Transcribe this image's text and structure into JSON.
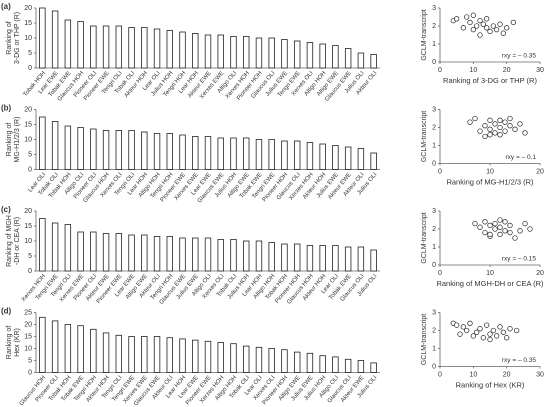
{
  "chart_data": [
    {
      "type": "bar",
      "panel_label": "(a)",
      "ylabel": [
        "Ranking of",
        "3-DG or THP (R)"
      ],
      "ylim": [
        0,
        20
      ],
      "yticks": [
        0,
        5,
        10,
        15,
        20
      ],
      "categories": [
        "Tobak HOH",
        "Lear EWE",
        "Tobak EWE",
        "Glaucus HOH",
        "Pioneer OLI",
        "Pioneer EWE",
        "Tengri OLI",
        "Tobak OLI",
        "Akteur HOH",
        "Lear OLI",
        "Julius HOH",
        "Tengri HOH",
        "Lear HOH",
        "Akteur EWE",
        "Xerxes EWE",
        "Altigo OLI",
        "Xerxes HOH",
        "Pioneer HOH",
        "Glaucus OLI",
        "Julius EWE",
        "Tengri EWE",
        "Xerxes OLI",
        "Altigo HOH",
        "Altigo EWE",
        "Glaucus EWE",
        "Julius OLI",
        "Akteur OLI"
      ],
      "values": [
        20,
        19,
        16,
        15.5,
        14,
        14,
        14,
        13.5,
        13.5,
        13,
        12.5,
        12,
        11.5,
        11,
        11,
        10.5,
        10.5,
        10,
        10,
        9.5,
        9,
        8.5,
        8,
        7.5,
        6.5,
        5,
        4.5
      ],
      "color": "#ffffff"
    },
    {
      "type": "scatter",
      "xlabel": "Ranking of 3-DG or THP (R)",
      "ylabel": "GCLM-transcript",
      "annotation": "rxy = – 0.35",
      "xlim": [
        0,
        30
      ],
      "xticks": [
        0,
        10,
        20,
        30
      ],
      "ylim": [
        0,
        3
      ],
      "yticks": [
        0,
        1,
        2,
        3
      ],
      "x": [
        4,
        5,
        7,
        8,
        9,
        10,
        10,
        11,
        12,
        12,
        13,
        14,
        14,
        15,
        16,
        17,
        18,
        19,
        20,
        22
      ],
      "y": [
        2.3,
        2.4,
        1.9,
        2.5,
        2.2,
        1.8,
        2.6,
        2.0,
        2.3,
        1.5,
        2.1,
        1.9,
        2.4,
        1.7,
        2.0,
        1.8,
        2.1,
        1.6,
        1.9,
        2.2
      ],
      "color": "#ffffff"
    },
    {
      "type": "bar",
      "panel_label": "(b)",
      "ylabel": [
        "Ranking of",
        "MG-H1/2/3 (R)"
      ],
      "ylim": [
        0,
        20
      ],
      "yticks": [
        0,
        5,
        10,
        15,
        20
      ],
      "categories": [
        "Lear OLI",
        "Tobak OLI",
        "Tobak HOH",
        "Altigo OLI",
        "Pioneer OLI",
        "Glaucus HOH",
        "Xerxes OLI",
        "Tengri OLI",
        "Lear HOH",
        "Altigo HOH",
        "Tengri HOH",
        "Pioneer EWE",
        "Xerxes EWE",
        "Lear EWE",
        "Glaucus EWE",
        "Julius HOH",
        "Altigo EWE",
        "Tobak EWE",
        "Tengri EWE",
        "Pioneer HOH",
        "Glaucus OLI",
        "Xerxes HOH",
        "Akteur HOH",
        "Julius EWE",
        "Akteur EWE",
        "Akteur OLI",
        "Julius OLI"
      ],
      "values": [
        17.5,
        16,
        14.5,
        14,
        13.5,
        13,
        13,
        13,
        12.5,
        12,
        12,
        11.5,
        11,
        11,
        10.5,
        10.5,
        10.5,
        10,
        10,
        9.5,
        9.5,
        9,
        8.5,
        8,
        7.5,
        7,
        5.5
      ],
      "color": "#ffffff"
    },
    {
      "type": "scatter",
      "xlabel": "Ranking of MG-H1/2/3 (R)",
      "ylabel": "GCLM-transcript",
      "annotation": "rxy = – 0.1",
      "xlim": [
        0,
        20
      ],
      "xticks": [
        0,
        10,
        20
      ],
      "ylim": [
        0,
        3
      ],
      "yticks": [
        0,
        1,
        2,
        3
      ],
      "x": [
        6,
        8,
        9,
        9,
        10,
        10,
        11,
        11,
        12,
        12,
        13,
        13,
        14,
        14,
        15,
        16,
        17,
        7,
        10,
        12
      ],
      "y": [
        2.3,
        1.8,
        2.1,
        1.5,
        2.4,
        1.9,
        2.2,
        1.7,
        2.0,
        1.6,
        2.3,
        1.8,
        2.1,
        2.5,
        1.9,
        2.2,
        1.7,
        2.5,
        1.6,
        2.4
      ],
      "color": "#ffffff"
    },
    {
      "type": "bar",
      "panel_label": "(c)",
      "ylabel": [
        "Ranking of MGH",
        "-DH or CEA (R)"
      ],
      "ylim": [
        0,
        20
      ],
      "yticks": [
        0,
        5,
        10,
        15,
        20
      ],
      "categories": [
        "Xerxes HOH",
        "Tengri EWE",
        "Tengri OLI",
        "Xerxes EWE",
        "Pioneer OLI",
        "Akteur EWE",
        "Pioneer EWE",
        "Lear EWE",
        "Altigo EWE",
        "Akteur OLI",
        "Tengri HOH",
        "Glaucus EWE",
        "Julius EWE",
        "Altigo OLI",
        "Xerxes OLI",
        "Tobak OLI",
        "Julius HOH",
        "Lear HOH",
        "Altigo HOH",
        "Tobak HOH",
        "Pioneer HOH",
        "Glaucus HOH",
        "Akteur HOH",
        "Lear OLI",
        "Tobak EWE",
        "Glaucus OLI",
        "Julius OLI"
      ],
      "values": [
        17.5,
        16,
        15.5,
        13,
        13,
        12.5,
        12.5,
        12,
        12,
        11.5,
        11.5,
        11,
        11,
        11,
        10.5,
        10.5,
        10,
        10,
        9.5,
        9,
        9,
        8.5,
        8.5,
        8.5,
        8,
        8,
        7
      ],
      "color": "#ffffff"
    },
    {
      "type": "scatter",
      "xlabel": "Ranking of MGH-DH or CEA (R)",
      "ylabel": "GCLM-transcript",
      "annotation": "rxy = – 0.15",
      "xlim": [
        0,
        20
      ],
      "xticks": [
        0,
        10,
        20
      ],
      "ylim": [
        0,
        3
      ],
      "yticks": [
        0,
        1,
        2,
        3
      ],
      "x": [
        7,
        8,
        9,
        9,
        10,
        10,
        11,
        11,
        12,
        12,
        13,
        13,
        14,
        14,
        15,
        16,
        17,
        18,
        10,
        12
      ],
      "y": [
        2.3,
        2.1,
        1.8,
        2.4,
        2.2,
        1.6,
        2.0,
        2.3,
        1.7,
        2.1,
        1.9,
        2.4,
        1.8,
        2.2,
        1.5,
        1.9,
        2.3,
        2.0,
        1.7,
        2.5
      ],
      "color": "#ffffff"
    },
    {
      "type": "bar",
      "panel_label": "(d)",
      "ylabel": [
        "Ranking of",
        "Hex (KR)"
      ],
      "ylim": [
        0,
        25
      ],
      "yticks": [
        0,
        5,
        10,
        15,
        20,
        25
      ],
      "categories": [
        "Glaucus HOH",
        "Pioneer OLI",
        "Tobak HOH",
        "Tobak EWE",
        "Tengri HOH",
        "Akteur HOH",
        "Tengri OLI",
        "Tengri EWE",
        "Xerxes EWE",
        "Glaucus EWE",
        "Akteur OLI",
        "Lear HOH",
        "Lear EWE",
        "Pioneer EWE",
        "Xerxes HOH",
        "Altigo HOH",
        "Tobak OLI",
        "Lear OLI",
        "Xerxes OLI",
        "Pioneer HOH",
        "Altigo EWE",
        "Julius EWE",
        "Julius HOH",
        "Altigo OLI",
        "Glaucus OLI",
        "Akteur EWE",
        "Julius OLI"
      ],
      "values": [
        23,
        21.5,
        20,
        19.5,
        18,
        16.5,
        15.5,
        15,
        15,
        15,
        14.5,
        14,
        13.5,
        13,
        12.5,
        12,
        11,
        10.5,
        10,
        9.5,
        8.5,
        8,
        7,
        6.5,
        5.5,
        5,
        4
      ],
      "color": "#ffffff"
    },
    {
      "type": "scatter",
      "xlabel": "Ranking of Hex (KR)",
      "ylabel": "GCLM-transcript",
      "annotation": "rxy = – 0.35",
      "xlim": [
        0,
        30
      ],
      "xticks": [
        0,
        10,
        20,
        30
      ],
      "ylim": [
        0,
        3
      ],
      "yticks": [
        0,
        1,
        2,
        3
      ],
      "x": [
        4,
        5,
        6,
        7,
        8,
        9,
        10,
        11,
        12,
        13,
        14,
        15,
        16,
        17,
        18,
        19,
        20,
        21,
        23,
        15
      ],
      "y": [
        2.4,
        2.3,
        1.8,
        2.2,
        2.0,
        2.4,
        1.7,
        1.9,
        2.1,
        1.6,
        2.3,
        1.8,
        2.0,
        1.7,
        2.2,
        1.9,
        1.6,
        2.1,
        2.0,
        1.5
      ],
      "color": "#ffffff"
    }
  ]
}
